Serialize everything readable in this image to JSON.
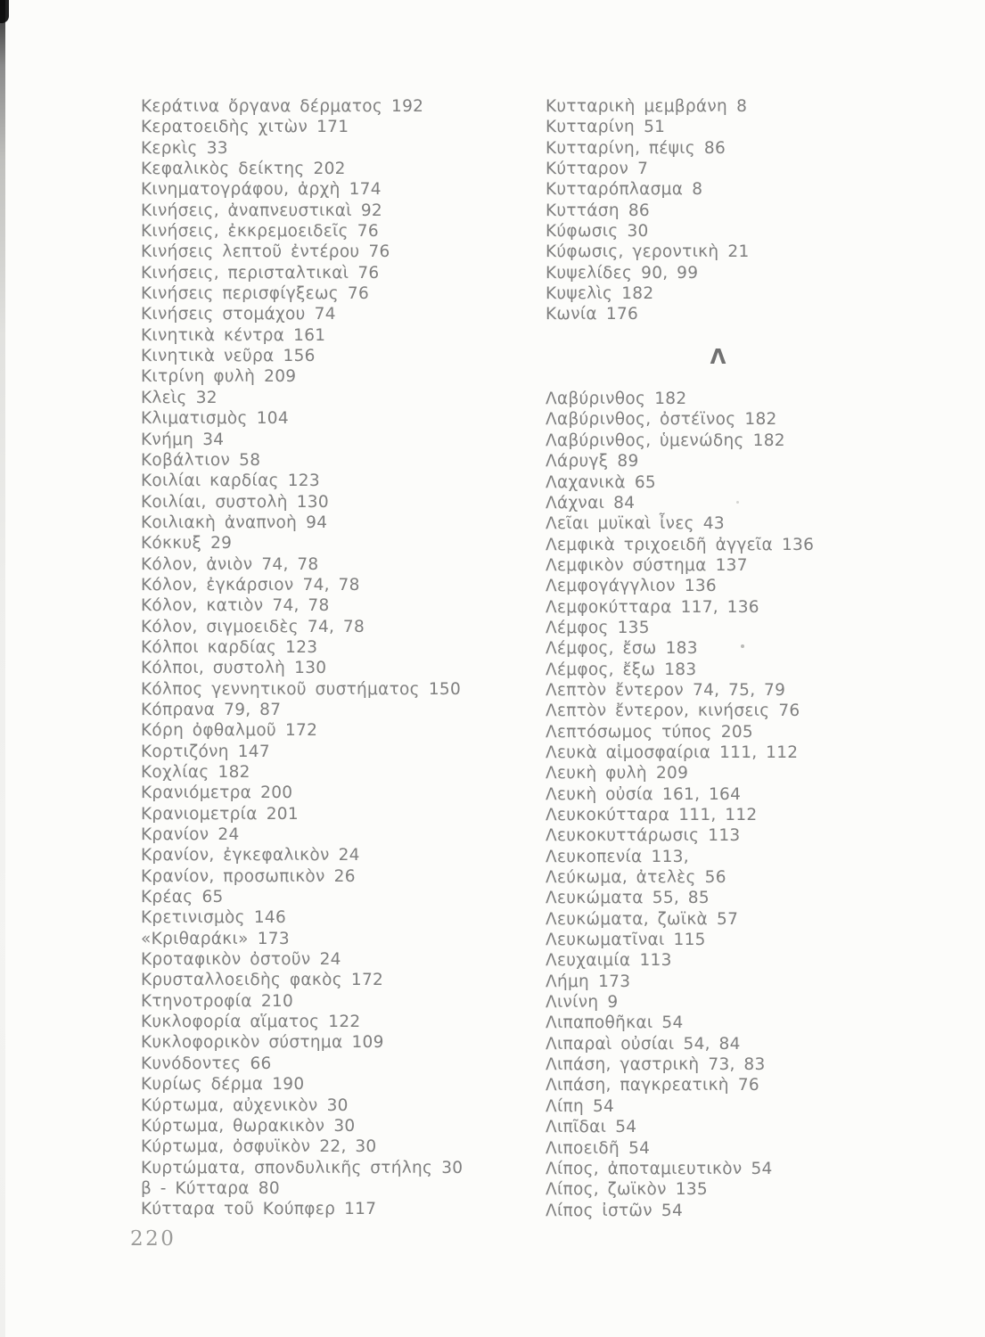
{
  "page_number": "220",
  "colors": {
    "background": "#fcfcfa",
    "text": "#7f7f7f",
    "header_text": "#717171",
    "page_number_text": "#9b9b99"
  },
  "columns": [
    {
      "name": "left",
      "groups": [
        {
          "header": null,
          "entries": [
            {
              "term": "Κεράτινα ὄργανα δέρματος",
              "pages": "192"
            },
            {
              "term": "Κερατοειδὴς χιτὼν",
              "pages": "171"
            },
            {
              "term": "Κερκὶς",
              "pages": "33"
            },
            {
              "term": "Κεφαλικὸς δείκτης",
              "pages": "202"
            },
            {
              "term": "Κινηματογράφου, ἀρχὴ",
              "pages": "174"
            },
            {
              "term": "Κινήσεις, ἀναπνευστικαὶ",
              "pages": "92"
            },
            {
              "term": "Κινήσεις, ἐκκρεμοειδεῖς",
              "pages": "76"
            },
            {
              "term": "Κινήσεις λεπτοῦ ἐντέρου",
              "pages": "76"
            },
            {
              "term": "Κινήσεις, περισταλτικαὶ",
              "pages": "76"
            },
            {
              "term": "Κινήσεις περισφίγξεως",
              "pages": "76"
            },
            {
              "term": "Κινήσεις στομάχου",
              "pages": "74"
            },
            {
              "term": "Κινητικὰ κέντρα",
              "pages": "161"
            },
            {
              "term": "Κινητικὰ νεῦρα",
              "pages": "156"
            },
            {
              "term": "Κιτρίνη φυλὴ",
              "pages": "209"
            },
            {
              "term": "Κλεὶς",
              "pages": "32"
            },
            {
              "term": "Κλιματισμὸς",
              "pages": "104"
            },
            {
              "term": "Κνήμη",
              "pages": "34"
            },
            {
              "term": "Κοβάλτιον",
              "pages": "58"
            },
            {
              "term": "Κοιλίαι καρδίας",
              "pages": "123"
            },
            {
              "term": "Κοιλίαι, συστολὴ",
              "pages": "130"
            },
            {
              "term": "Κοιλιακὴ ἀναπνοὴ",
              "pages": "94"
            },
            {
              "term": "Κόκκυξ",
              "pages": "29"
            },
            {
              "term": "Κόλον, ἀνιὸν",
              "pages": "74, 78"
            },
            {
              "term": "Κόλον, ἐγκάρσιον",
              "pages": "74, 78"
            },
            {
              "term": "Κόλον, κατιὸν",
              "pages": "74, 78"
            },
            {
              "term": "Κόλον, σιγμοειδὲς",
              "pages": "74, 78"
            },
            {
              "term": "Κόλποι καρδίας",
              "pages": "123"
            },
            {
              "term": "Κόλποι, συστολὴ",
              "pages": "130"
            },
            {
              "term": "Κόλπος γεννητικοῦ συστήματος",
              "pages": "150"
            },
            {
              "term": "Κόπρανα",
              "pages": "79, 87"
            },
            {
              "term": "Κόρη ὀφθαλμοῦ",
              "pages": "172"
            },
            {
              "term": "Κορτιζόνη",
              "pages": "147"
            },
            {
              "term": "Κοχλίας",
              "pages": "182"
            },
            {
              "term": "Κρανιόμετρα",
              "pages": "200"
            },
            {
              "term": "Κρανιομετρία",
              "pages": "201"
            },
            {
              "term": "Κρανίον",
              "pages": "24"
            },
            {
              "term": "Κρανίον, ἐγκεφαλικὸν",
              "pages": "24"
            },
            {
              "term": "Κρανίον, προσωπικὸν",
              "pages": "26"
            },
            {
              "term": "Κρέας",
              "pages": "65"
            },
            {
              "term": "Κρετινισμὸς",
              "pages": "146"
            },
            {
              "term": "«Κριθαράκι»",
              "pages": "173"
            },
            {
              "term": "Κροταφικὸν ὀστοῦν",
              "pages": "24"
            },
            {
              "term": "Κρυσταλλοειδὴς φακὸς",
              "pages": "172"
            },
            {
              "term": "Κτηνοτροφία",
              "pages": "210"
            },
            {
              "term": "Κυκλοφορία αἵματος",
              "pages": "122"
            },
            {
              "term": "Κυκλοφορικὸν σύστημα",
              "pages": "109"
            },
            {
              "term": "Κυνόδοντες",
              "pages": "66"
            },
            {
              "term": "Κυρίως δέρμα",
              "pages": "190"
            },
            {
              "term": "Κύρτωμα, αὐχενικὸν",
              "pages": "30"
            },
            {
              "term": "Κύρτωμα, θωρακικὸν",
              "pages": "30"
            },
            {
              "term": "Κύρτωμα, ὀσφυϊκὸν",
              "pages": "22, 30"
            },
            {
              "term": "Κυρτώματα, σπονδυλικῆς στήλης",
              "pages": "30"
            },
            {
              "term": "β - Κύτταρα",
              "pages": "80"
            },
            {
              "term": "Κύτταρα τοῦ Κούπφερ",
              "pages": "117"
            }
          ]
        }
      ]
    },
    {
      "name": "right",
      "groups": [
        {
          "header": null,
          "entries": [
            {
              "term": "Κυτταρικὴ μεμβράνη",
              "pages": "8"
            },
            {
              "term": "Κυτταρίνη",
              "pages": "51"
            },
            {
              "term": "Κυτταρίνη, πέψις",
              "pages": "86"
            },
            {
              "term": "Κύτταρον",
              "pages": "7"
            },
            {
              "term": "Κυτταρόπλασμα",
              "pages": "8"
            },
            {
              "term": "Κυττάση",
              "pages": "86"
            },
            {
              "term": "Κύφωσις",
              "pages": "30"
            },
            {
              "term": "Κύφωσις, γεροντικὴ",
              "pages": "21"
            },
            {
              "term": "Κυψελίδες",
              "pages": "90, 99"
            },
            {
              "term": "Κυψελὶς",
              "pages": "182"
            },
            {
              "term": "Κωνία",
              "pages": "176"
            }
          ]
        },
        {
          "header": "Λ",
          "entries": [
            {
              "term": "Λαβύρινθος",
              "pages": "182"
            },
            {
              "term": "Λαβύρινθος, ὀστέϊνος",
              "pages": "182"
            },
            {
              "term": "Λαβύρινθος, ὑμενώδης",
              "pages": "182"
            },
            {
              "term": "Λάρυγξ",
              "pages": "89"
            },
            {
              "term": "Λαχανικὰ",
              "pages": "65"
            },
            {
              "term": "Λάχναι",
              "pages": "84"
            },
            {
              "term": "Λεῖαι μυϊκαὶ ἶνες",
              "pages": "43"
            },
            {
              "term": "Λεμφικὰ τριχοειδῆ ἀγγεῖα",
              "pages": "136"
            },
            {
              "term": "Λεμφικὸν σύστημα",
              "pages": "137"
            },
            {
              "term": "Λεμφογάγγλιον",
              "pages": "136"
            },
            {
              "term": "Λεμφοκύτταρα",
              "pages": "117, 136"
            },
            {
              "term": "Λέμφος",
              "pages": "135"
            },
            {
              "term": "Λέμφος, ἔσω",
              "pages": "183"
            },
            {
              "term": "Λέμφος, ἔξω",
              "pages": "183"
            },
            {
              "term": "Λεπτὸν ἔντερον",
              "pages": "74, 75, 79"
            },
            {
              "term": "Λεπτὸν ἔντερον, κινήσεις",
              "pages": "76"
            },
            {
              "term": "Λεπτόσωμος τύπος",
              "pages": "205"
            },
            {
              "term": "Λευκὰ αἱμοσφαίρια",
              "pages": "111, 112"
            },
            {
              "term": "Λευκὴ φυλὴ",
              "pages": "209"
            },
            {
              "term": "Λευκὴ οὐσία",
              "pages": "161, 164"
            },
            {
              "term": "Λευκοκύτταρα",
              "pages": "111, 112"
            },
            {
              "term": "Λευκοκυττάρωσις",
              "pages": "113"
            },
            {
              "term": "Λευκοπενία",
              "pages": "113,"
            },
            {
              "term": "Λεύκωμα, ἀτελὲς",
              "pages": "56"
            },
            {
              "term": "Λευκώματα",
              "pages": "55, 85"
            },
            {
              "term": "Λευκώματα, ζωϊκὰ",
              "pages": "57"
            },
            {
              "term": "Λευκωματῖναι",
              "pages": "115"
            },
            {
              "term": "Λευχαιμία",
              "pages": "113"
            },
            {
              "term": "Λήμη",
              "pages": "173"
            },
            {
              "term": "Λινίνη",
              "pages": "9"
            },
            {
              "term": "Λιπαποθῆκαι",
              "pages": "54"
            },
            {
              "term": "Λιπαραὶ οὐσίαι",
              "pages": "54, 84"
            },
            {
              "term": "Λιπάση, γαστρικὴ",
              "pages": "73, 83"
            },
            {
              "term": "Λιπάση, παγκρεατικὴ",
              "pages": "76"
            },
            {
              "term": "Λίπη",
              "pages": "54"
            },
            {
              "term": "Λιπῖδαι",
              "pages": "54"
            },
            {
              "term": "Λιποειδῆ",
              "pages": "54"
            },
            {
              "term": "Λίπος, ἀποταμιευτικὸν",
              "pages": "54"
            },
            {
              "term": "Λίπος, ζωϊκὸν",
              "pages": "135"
            },
            {
              "term": "Λίπος ἰστῶν",
              "pages": "54"
            }
          ]
        }
      ]
    }
  ]
}
